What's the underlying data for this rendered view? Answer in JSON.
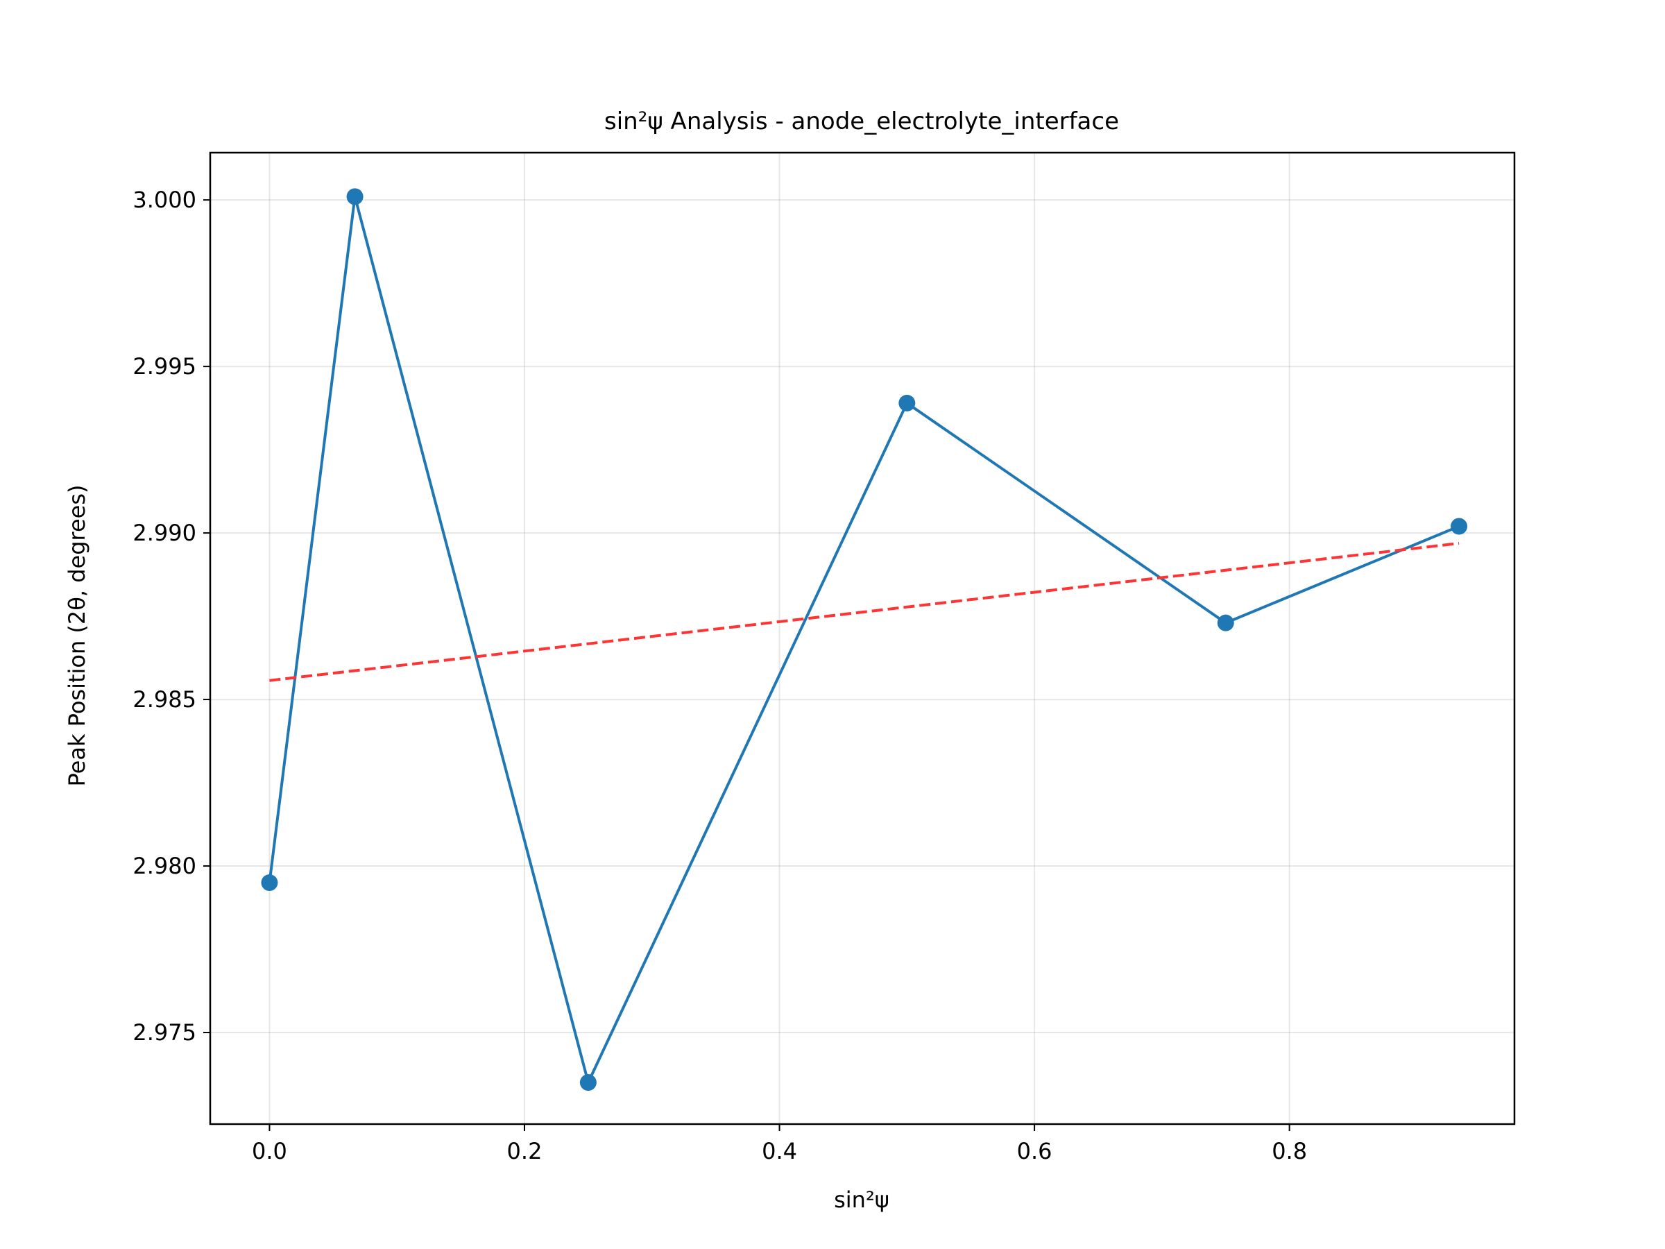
{
  "chart_data": {
    "type": "line",
    "title": "sin²ψ Analysis - anode_electrolyte_interface",
    "xlabel": "sin²ψ",
    "ylabel": "Peak Position (2θ, degrees)",
    "xlim": [
      -0.0465,
      0.9765
    ],
    "ylim": [
      2.97225,
      3.00142
    ],
    "grid": true,
    "x_ticks": [
      0.0,
      0.2,
      0.4,
      0.6,
      0.8
    ],
    "x_tick_labels": [
      "0.0",
      "0.2",
      "0.4",
      "0.6",
      "0.8"
    ],
    "y_ticks": [
      2.975,
      2.98,
      2.985,
      2.99,
      2.995,
      3.0
    ],
    "y_tick_labels": [
      "2.975",
      "2.980",
      "2.985",
      "2.990",
      "2.995",
      "3.000"
    ],
    "series": [
      {
        "kind": "line-marker",
        "color": "#1f77b4",
        "x": [
          0.0,
          0.067,
          0.25,
          0.5,
          0.75,
          0.933
        ],
        "y": [
          2.9795,
          3.0001,
          2.9735,
          2.9939,
          2.9873,
          2.9902
        ]
      },
      {
        "kind": "fit-line",
        "color": "#ff3333",
        "style": "dashed",
        "x": [
          0.0,
          0.933
        ],
        "y": [
          2.98557,
          2.98969
        ]
      }
    ]
  }
}
